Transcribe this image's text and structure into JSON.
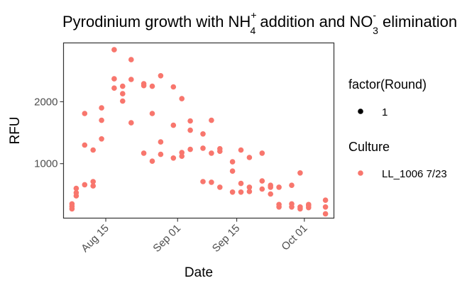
{
  "chart_data": {
    "type": "scatter",
    "title": {
      "prefix": "Pyrodinium growth with NH",
      "nh_sub": "4",
      "nh_sup": "+",
      "middle": " addition and NO",
      "no_sub": "3",
      "no_sup": "-",
      "suffix": " elimination"
    },
    "xlabel": "Date",
    "ylabel": "RFU",
    "x_ticks": [
      {
        "date": "2023-08-15",
        "label": "Aug 15"
      },
      {
        "date": "2023-09-01",
        "label": "Sep 01"
      },
      {
        "date": "2023-09-15",
        "label": "Sep 15"
      },
      {
        "date": "2023-10-01",
        "label": "Oct 01"
      }
    ],
    "y_ticks": [
      {
        "value": 1000,
        "label": "1000"
      },
      {
        "value": 2000,
        "label": "2000"
      }
    ],
    "xlim": [
      "2023-08-05",
      "2023-10-08"
    ],
    "ylim": [
      120,
      2950
    ],
    "grid": false,
    "legend_position": "right",
    "legend": [
      {
        "title": "factor(Round)",
        "entries": [
          {
            "label": "1",
            "color": "#000000"
          }
        ]
      },
      {
        "title": "Culture",
        "entries": [
          {
            "label": "LL_1006 7/23",
            "color": "#F8766D"
          }
        ]
      }
    ],
    "series": [
      {
        "name": "LL_1006 7/23",
        "color": "#F8766D",
        "points": [
          {
            "x": "2023-08-07",
            "y": 270
          },
          {
            "x": "2023-08-07",
            "y": 310
          },
          {
            "x": "2023-08-07",
            "y": 350
          },
          {
            "x": "2023-08-08",
            "y": 480
          },
          {
            "x": "2023-08-08",
            "y": 530
          },
          {
            "x": "2023-08-08",
            "y": 600
          },
          {
            "x": "2023-08-10",
            "y": 660
          },
          {
            "x": "2023-08-10",
            "y": 1300
          },
          {
            "x": "2023-08-10",
            "y": 1810
          },
          {
            "x": "2023-08-12",
            "y": 640
          },
          {
            "x": "2023-08-12",
            "y": 710
          },
          {
            "x": "2023-08-12",
            "y": 1220
          },
          {
            "x": "2023-08-14",
            "y": 1400
          },
          {
            "x": "2023-08-14",
            "y": 1700
          },
          {
            "x": "2023-08-14",
            "y": 1900
          },
          {
            "x": "2023-08-17",
            "y": 2220
          },
          {
            "x": "2023-08-17",
            "y": 2370
          },
          {
            "x": "2023-08-17",
            "y": 2840
          },
          {
            "x": "2023-08-19",
            "y": 2010
          },
          {
            "x": "2023-08-19",
            "y": 2130
          },
          {
            "x": "2023-08-19",
            "y": 2250
          },
          {
            "x": "2023-08-21",
            "y": 1660
          },
          {
            "x": "2023-08-21",
            "y": 2360
          },
          {
            "x": "2023-08-21",
            "y": 2680
          },
          {
            "x": "2023-08-24",
            "y": 1170
          },
          {
            "x": "2023-08-24",
            "y": 2260
          },
          {
            "x": "2023-08-24",
            "y": 2290
          },
          {
            "x": "2023-08-26",
            "y": 1040
          },
          {
            "x": "2023-08-26",
            "y": 1810
          },
          {
            "x": "2023-08-26",
            "y": 2250
          },
          {
            "x": "2023-08-28",
            "y": 1150
          },
          {
            "x": "2023-08-28",
            "y": 1350
          },
          {
            "x": "2023-08-28",
            "y": 2420
          },
          {
            "x": "2023-08-31",
            "y": 1090
          },
          {
            "x": "2023-08-31",
            "y": 1620
          },
          {
            "x": "2023-08-31",
            "y": 2240
          },
          {
            "x": "2023-09-02",
            "y": 1120
          },
          {
            "x": "2023-09-02",
            "y": 1180
          },
          {
            "x": "2023-09-02",
            "y": 2050
          },
          {
            "x": "2023-09-04",
            "y": 1230
          },
          {
            "x": "2023-09-04",
            "y": 1540
          },
          {
            "x": "2023-09-04",
            "y": 1690
          },
          {
            "x": "2023-09-07",
            "y": 710
          },
          {
            "x": "2023-09-07",
            "y": 1250
          },
          {
            "x": "2023-09-07",
            "y": 1480
          },
          {
            "x": "2023-09-09",
            "y": 700
          },
          {
            "x": "2023-09-09",
            "y": 1170
          },
          {
            "x": "2023-09-09",
            "y": 1700
          },
          {
            "x": "2023-09-11",
            "y": 620
          },
          {
            "x": "2023-09-11",
            "y": 1200
          },
          {
            "x": "2023-09-11",
            "y": 1240
          },
          {
            "x": "2023-09-14",
            "y": 540
          },
          {
            "x": "2023-09-14",
            "y": 880
          },
          {
            "x": "2023-09-14",
            "y": 1030
          },
          {
            "x": "2023-09-16",
            "y": 540
          },
          {
            "x": "2023-09-16",
            "y": 680
          },
          {
            "x": "2023-09-16",
            "y": 1220
          },
          {
            "x": "2023-09-18",
            "y": 550
          },
          {
            "x": "2023-09-18",
            "y": 620
          },
          {
            "x": "2023-09-18",
            "y": 1100
          },
          {
            "x": "2023-09-21",
            "y": 590
          },
          {
            "x": "2023-09-21",
            "y": 720
          },
          {
            "x": "2023-09-21",
            "y": 1170
          },
          {
            "x": "2023-09-23",
            "y": 510
          },
          {
            "x": "2023-09-23",
            "y": 620
          },
          {
            "x": "2023-09-23",
            "y": 650
          },
          {
            "x": "2023-09-25",
            "y": 300
          },
          {
            "x": "2023-09-25",
            "y": 340
          },
          {
            "x": "2023-09-25",
            "y": 620
          },
          {
            "x": "2023-09-28",
            "y": 300
          },
          {
            "x": "2023-09-28",
            "y": 350
          },
          {
            "x": "2023-09-28",
            "y": 650
          },
          {
            "x": "2023-09-30",
            "y": 270
          },
          {
            "x": "2023-09-30",
            "y": 300
          },
          {
            "x": "2023-09-30",
            "y": 850
          },
          {
            "x": "2023-10-02",
            "y": 290
          },
          {
            "x": "2023-10-02",
            "y": 320
          },
          {
            "x": "2023-10-02",
            "y": 340
          },
          {
            "x": "2023-10-06",
            "y": 190
          },
          {
            "x": "2023-10-06",
            "y": 300
          },
          {
            "x": "2023-10-06",
            "y": 410
          }
        ]
      }
    ]
  }
}
